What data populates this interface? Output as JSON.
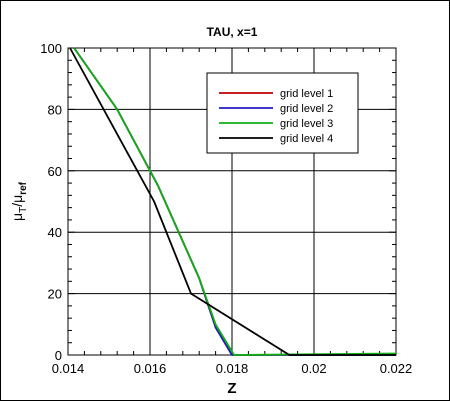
{
  "chart_data": {
    "type": "line",
    "title": "TAU, x=1",
    "xlabel": "Z",
    "ylabel_main": "μ",
    "ylabel_sub1": "T",
    "ylabel_sep": "/μ",
    "ylabel_sub2": "ref",
    "xlim": [
      0.014,
      0.022
    ],
    "ylim": [
      0,
      100
    ],
    "x_ticks": [
      0.014,
      0.016,
      0.018,
      0.02,
      0.022
    ],
    "x_tick_labels": [
      "0.014",
      "0.016",
      "0.018",
      "0.02",
      "0.022"
    ],
    "y_ticks": [
      0,
      20,
      40,
      60,
      80,
      100
    ],
    "y_tick_labels": [
      "0",
      "20",
      "40",
      "60",
      "80",
      "100"
    ],
    "grid": true,
    "legend_position": "top-right",
    "series": [
      {
        "name": "grid level 1",
        "color": "#c00000",
        "points": [
          [
            0.01415,
            100
          ],
          [
            0.0152,
            80
          ],
          [
            0.0162,
            55
          ],
          [
            0.0172,
            25
          ],
          [
            0.0176,
            9
          ],
          [
            0.018,
            0
          ],
          [
            0.022,
            0
          ]
        ]
      },
      {
        "name": "grid level 2",
        "color": "#2020c0",
        "points": [
          [
            0.01415,
            100
          ],
          [
            0.0152,
            80
          ],
          [
            0.0162,
            55
          ],
          [
            0.0172,
            25
          ],
          [
            0.0176,
            9
          ],
          [
            0.018,
            0
          ],
          [
            0.022,
            0
          ]
        ]
      },
      {
        "name": "grid level 3",
        "color": "#10b010",
        "points": [
          [
            0.01415,
            100
          ],
          [
            0.0152,
            80
          ],
          [
            0.0162,
            55
          ],
          [
            0.0172,
            25
          ],
          [
            0.0176,
            10
          ],
          [
            0.01805,
            0
          ],
          [
            0.022,
            0.5
          ]
        ]
      },
      {
        "name": "grid level 4",
        "color": "#000000",
        "points": [
          [
            0.01405,
            100
          ],
          [
            0.0161,
            50
          ],
          [
            0.017,
            20
          ],
          [
            0.0194,
            0
          ],
          [
            0.022,
            0
          ]
        ]
      }
    ]
  }
}
